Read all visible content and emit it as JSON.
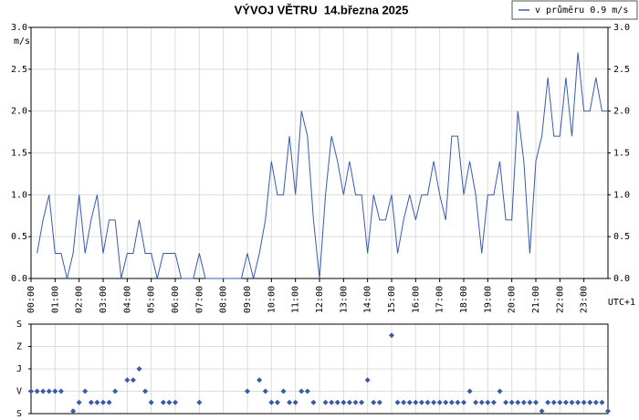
{
  "chart_data": [
    {
      "type": "line",
      "title": "VÝVOJ VĚTRU  14.března 2025",
      "ylabel": "m/s",
      "xlabel": "UTC+1",
      "series": [
        {
          "name": "v průměru 0.9 m/s",
          "color": "#3a5aa8",
          "x": [
            15,
            30,
            45,
            60,
            75,
            90,
            105,
            120,
            135,
            150,
            165,
            180,
            195,
            210,
            225,
            240,
            255,
            270,
            285,
            300,
            315,
            330,
            345,
            360,
            375,
            390,
            405,
            420,
            435,
            450,
            465,
            480,
            495,
            510,
            525,
            540,
            555,
            570,
            585,
            600,
            615,
            630,
            645,
            660,
            675,
            690,
            705,
            720,
            735,
            750,
            765,
            780,
            795,
            810,
            825,
            840,
            855,
            870,
            885,
            900,
            915,
            930,
            945,
            960,
            975,
            990,
            1005,
            1020,
            1035,
            1050,
            1065,
            1080,
            1095,
            1110,
            1125,
            1140,
            1155,
            1170,
            1185,
            1200,
            1215,
            1230,
            1245,
            1260,
            1275,
            1290,
            1305,
            1320,
            1335,
            1350,
            1365,
            1380,
            1395,
            1410,
            1425,
            1440
          ],
          "values": [
            0.3,
            0.7,
            1.0,
            0.3,
            0.3,
            0.0,
            0.3,
            1.0,
            0.3,
            0.7,
            1.0,
            0.3,
            0.7,
            0.7,
            0.0,
            0.3,
            0.3,
            0.7,
            0.3,
            0.3,
            0.0,
            0.3,
            0.3,
            0.3,
            0.0,
            0.0,
            0.0,
            0.3,
            0.0,
            0,
            0,
            0,
            0,
            0,
            0,
            0.3,
            0.0,
            0.3,
            0.7,
            1.4,
            1.0,
            1.0,
            1.7,
            1.0,
            2.0,
            1.7,
            0.7,
            0.0,
            1.0,
            1.7,
            1.4,
            1.0,
            1.4,
            1.0,
            1.0,
            0.3,
            1.0,
            0.7,
            0.7,
            1.0,
            0.3,
            0.7,
            1.0,
            0.7,
            1.0,
            1.0,
            1.4,
            1.0,
            0.7,
            1.7,
            1.7,
            1.0,
            1.4,
            1.0,
            0.3,
            1.0,
            1.0,
            1.4,
            0.7,
            0.7,
            2.0,
            1.4,
            0.3,
            1.4,
            1.7,
            2.4,
            1.7,
            1.7,
            2.4,
            1.7,
            2.7,
            2.0,
            2.0,
            2.4,
            2.0,
            2.0
          ]
        }
      ],
      "xlim": [
        0,
        1440
      ],
      "xticks": [
        {
          "value": 0,
          "label": "00:00"
        },
        {
          "value": 60,
          "label": "01:00"
        },
        {
          "value": 120,
          "label": "02:00"
        },
        {
          "value": 180,
          "label": "03:00"
        },
        {
          "value": 240,
          "label": "04:00"
        },
        {
          "value": 300,
          "label": "05:00"
        },
        {
          "value": 360,
          "label": "06:00"
        },
        {
          "value": 420,
          "label": "07:00"
        },
        {
          "value": 480,
          "label": "08:00"
        },
        {
          "value": 540,
          "label": "09:00"
        },
        {
          "value": 600,
          "label": "10:00"
        },
        {
          "value": 660,
          "label": "11:00"
        },
        {
          "value": 720,
          "label": "12:00"
        },
        {
          "value": 780,
          "label": "13:00"
        },
        {
          "value": 840,
          "label": "14:00"
        },
        {
          "value": 900,
          "label": "15:00"
        },
        {
          "value": 960,
          "label": "16:00"
        },
        {
          "value": 1020,
          "label": "17:00"
        },
        {
          "value": 1080,
          "label": "18:00"
        },
        {
          "value": 1140,
          "label": "19:00"
        },
        {
          "value": 1200,
          "label": "20:00"
        },
        {
          "value": 1260,
          "label": "21:00"
        },
        {
          "value": 1320,
          "label": "22:00"
        },
        {
          "value": 1380,
          "label": "23:00"
        }
      ],
      "ylim": [
        0,
        3
      ],
      "yticks": [
        {
          "value": 0,
          "label": "0.0"
        },
        0.5,
        {
          "value": 1,
          "label": "1.0"
        },
        1.5,
        {
          "value": 2,
          "label": "2.0"
        },
        2.5,
        {
          "value": 3,
          "label": "3.0"
        }
      ],
      "grid": true
    },
    {
      "type": "scatter",
      "color": "#3a5aa8",
      "x": [
        0,
        15,
        30,
        45,
        60,
        75,
        105,
        120,
        135,
        150,
        165,
        180,
        195,
        210,
        240,
        255,
        270,
        285,
        300,
        330,
        345,
        360,
        420,
        540,
        570,
        585,
        600,
        615,
        630,
        645,
        660,
        675,
        690,
        705,
        735,
        750,
        765,
        780,
        795,
        810,
        825,
        840,
        855,
        870,
        900,
        915,
        930,
        945,
        960,
        975,
        990,
        1005,
        1020,
        1035,
        1050,
        1065,
        1080,
        1095,
        1110,
        1125,
        1140,
        1155,
        1170,
        1185,
        1200,
        1215,
        1230,
        1245,
        1260,
        1275,
        1290,
        1305,
        1320,
        1335,
        1350,
        1365,
        1380,
        1395,
        1410,
        1425,
        1440
      ],
      "values": [
        90,
        90,
        90,
        90,
        90,
        90,
        10,
        45,
        90,
        45,
        45,
        45,
        45,
        90,
        135,
        135,
        180,
        90,
        45,
        45,
        45,
        45,
        45,
        90,
        135,
        90,
        45,
        45,
        90,
        45,
        45,
        90,
        90,
        45,
        45,
        45,
        45,
        45,
        45,
        45,
        45,
        135,
        45,
        45,
        315,
        45,
        45,
        45,
        45,
        45,
        45,
        45,
        45,
        45,
        45,
        45,
        45,
        90,
        45,
        45,
        45,
        45,
        90,
        45,
        45,
        45,
        45,
        45,
        45,
        10,
        45,
        45,
        45,
        45,
        45,
        45,
        45,
        45,
        45,
        45,
        10
      ],
      "xlim": [
        0,
        1440
      ],
      "ylim": [
        0,
        360
      ],
      "yticks": [
        {
          "value": 0,
          "label": "S"
        },
        {
          "value": 90,
          "label": "V"
        },
        {
          "value": 180,
          "label": "J"
        },
        {
          "value": 270,
          "label": "Z"
        },
        {
          "value": 360,
          "label": "S"
        }
      ],
      "grid": true
    }
  ]
}
